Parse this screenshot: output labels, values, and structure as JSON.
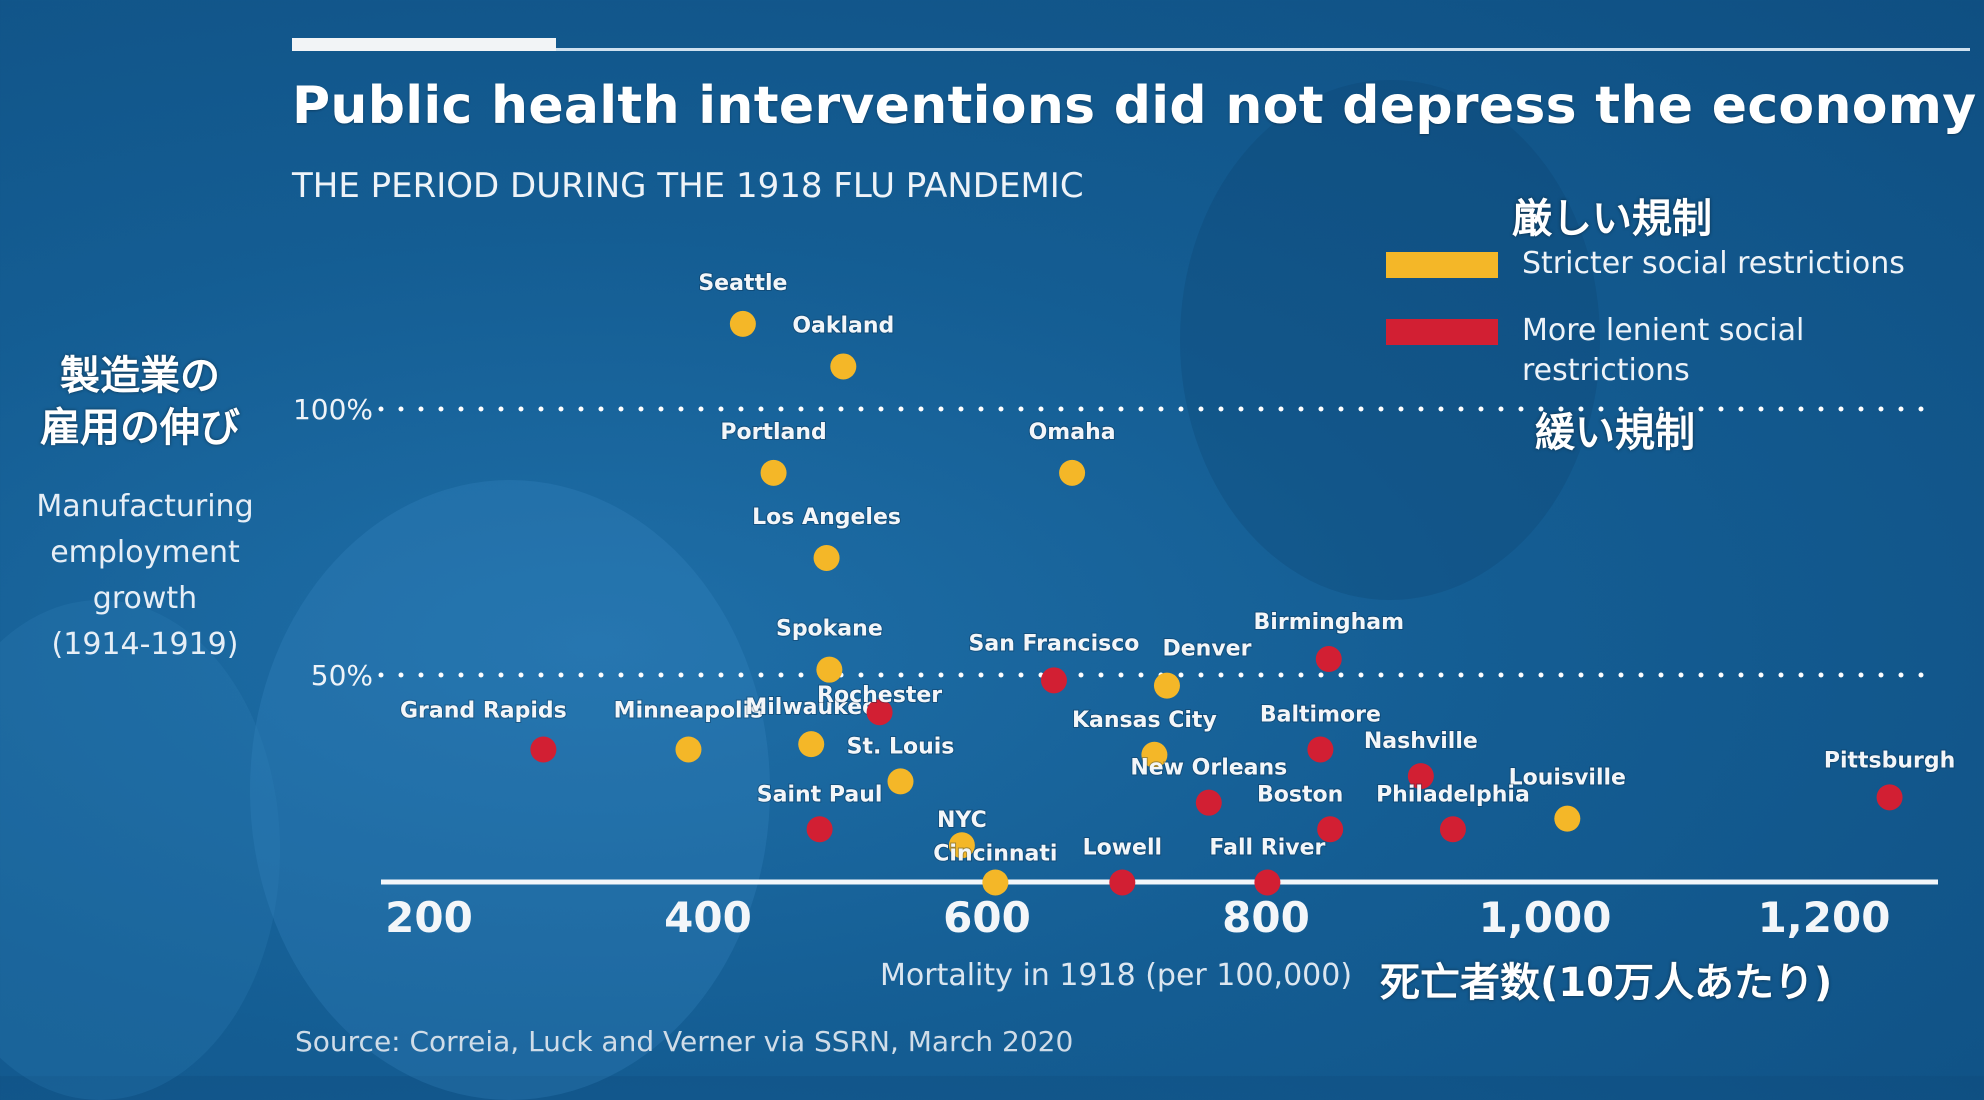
{
  "header": {
    "title": "Public health interventions did not depress the economy",
    "subtitle": "THE PERIOD DURING THE 1918 FLU PANDEMIC"
  },
  "annotations_jp": {
    "strict": "厳しい規制",
    "lenient": "緩い規制",
    "ylabel": [
      "製造業の",
      "雇用の伸び"
    ],
    "xlabel": "死亡者数(10万人あたり)"
  },
  "colors": {
    "strict": "#f4b728",
    "lenient": "#d21f33",
    "background": "#145d93"
  },
  "legend": [
    {
      "key": "strict",
      "label": "Stricter social restrictions"
    },
    {
      "key": "lenient",
      "label_lines": [
        "More lenient social",
        "restrictions"
      ]
    }
  ],
  "source": "Source: Correia, Luck and Verner via SSRN, March 2020",
  "chart_data": {
    "type": "scatter",
    "title": "Public health interventions did not depress the economy",
    "subtitle": "THE PERIOD DURING THE 1918 FLU PANDEMIC",
    "xlabel": "Mortality in 1918 (per 100,000)",
    "ylabel": [
      "Manufacturing",
      "employment",
      "growth",
      "(1914-1919)"
    ],
    "xticks": [
      200,
      400,
      600,
      800,
      1000,
      1200
    ],
    "xtick_labels": [
      "200",
      "400",
      "600",
      "800",
      "1,000",
      "1,200"
    ],
    "xlim": [
      130,
      1280
    ],
    "yticks": [
      100,
      50
    ],
    "ytick_labels": [
      "100%",
      "50%"
    ],
    "ylim": [
      11,
      120
    ],
    "grid": "dotted horizontal at 50% and 100%",
    "legend_position": "top-right",
    "series": [
      {
        "name": "Stricter social restrictions",
        "key": "strict",
        "points": [
          {
            "city": "Seattle",
            "x": 425,
            "y": 116
          },
          {
            "city": "Oakland",
            "x": 497,
            "y": 108
          },
          {
            "city": "Portland",
            "x": 447,
            "y": 88
          },
          {
            "city": "Omaha",
            "x": 661,
            "y": 88
          },
          {
            "city": "Los Angeles",
            "x": 485,
            "y": 72
          },
          {
            "city": "Spokane",
            "x": 487,
            "y": 51
          },
          {
            "city": "Denver",
            "x": 729,
            "y": 48
          },
          {
            "city": "Minneapolis",
            "x": 386,
            "y": 36
          },
          {
            "city": "Milwaukee",
            "x": 474,
            "y": 37
          },
          {
            "city": "Kansas City",
            "x": 720,
            "y": 35
          },
          {
            "city": "St. Louis",
            "x": 538,
            "y": 30
          },
          {
            "city": "Louisville",
            "x": 1016,
            "y": 23
          },
          {
            "city": "NYC",
            "x": 582,
            "y": 18
          },
          {
            "city": "Cincinnati",
            "x": 606,
            "y": 11
          }
        ]
      },
      {
        "name": "More lenient social restrictions",
        "key": "lenient",
        "points": [
          {
            "city": "Birmingham",
            "x": 845,
            "y": 53
          },
          {
            "city": "San Francisco",
            "x": 648,
            "y": 49
          },
          {
            "city": "Rochester",
            "x": 523,
            "y": 43
          },
          {
            "city": "Grand Rapids",
            "x": 282,
            "y": 36
          },
          {
            "city": "Baltimore",
            "x": 839,
            "y": 36
          },
          {
            "city": "Nashville",
            "x": 911,
            "y": 31
          },
          {
            "city": "Pittsburgh",
            "x": 1247,
            "y": 27
          },
          {
            "city": "New Orleans",
            "x": 759,
            "y": 26
          },
          {
            "city": "Saint Paul",
            "x": 480,
            "y": 21
          },
          {
            "city": "Boston",
            "x": 846,
            "y": 21
          },
          {
            "city": "Philadelphia",
            "x": 934,
            "y": 21
          },
          {
            "city": "Lowell",
            "x": 697,
            "y": 11
          },
          {
            "city": "Fall River",
            "x": 801,
            "y": 11
          }
        ]
      }
    ]
  }
}
